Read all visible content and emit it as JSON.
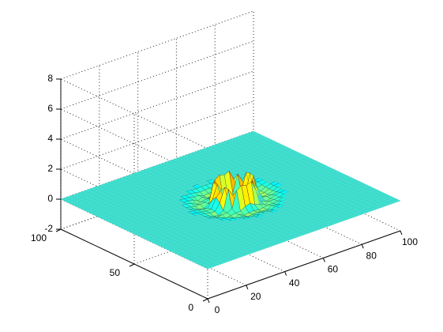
{
  "chart_data": {
    "type": "surface",
    "title": "",
    "xlabel": "",
    "ylabel": "",
    "zlabel": "",
    "xlim": [
      0,
      100
    ],
    "ylim": [
      0,
      100
    ],
    "zlim": [
      -2,
      8
    ],
    "x_ticks": [
      0,
      20,
      40,
      60,
      80,
      100
    ],
    "y_ticks": [
      0,
      50,
      100
    ],
    "z_ticks": [
      -2,
      0,
      2,
      4,
      6,
      8
    ],
    "grid": true,
    "box": "3d axes with dotted grid on back walls",
    "colormap": "jet",
    "surface": {
      "baseline_z": 0,
      "baseline_color": "#40e0d0",
      "feature": "circular ring of spikes (mesh) centered near the middle of the grid",
      "center": [
        52,
        50
      ],
      "ring_radius": 8,
      "ring_peak_z": 1.5,
      "ring_min_z": -0.6,
      "halo_radius": 20
    },
    "view": "default 3-D view (azimuth -37.5, elevation 30)"
  }
}
